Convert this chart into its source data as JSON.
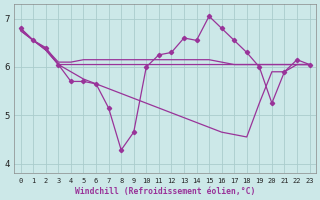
{
  "background_color": "#cce8e8",
  "grid_color": "#aacccc",
  "line_color": "#993399",
  "xlabel": "Windchill (Refroidissement éolien,°C)",
  "xlim": [
    -0.5,
    23.5
  ],
  "ylim": [
    3.8,
    7.3
  ],
  "yticks": [
    4,
    5,
    6,
    7
  ],
  "xticks": [
    0,
    1,
    2,
    3,
    4,
    5,
    6,
    7,
    8,
    9,
    10,
    11,
    12,
    13,
    14,
    15,
    16,
    17,
    18,
    19,
    20,
    21,
    22,
    23
  ],
  "series": [
    {
      "x": [
        0,
        1,
        2,
        3,
        4,
        5,
        6,
        7,
        8,
        9,
        10,
        11,
        12,
        13,
        14,
        15,
        16,
        17,
        18,
        19,
        20,
        21,
        22,
        23
      ],
      "y": [
        6.8,
        6.55,
        6.4,
        6.05,
        5.7,
        5.7,
        5.65,
        5.15,
        4.28,
        4.65,
        6.0,
        6.25,
        6.3,
        6.6,
        6.55,
        7.05,
        6.8,
        6.55,
        6.3,
        6.0,
        5.25,
        5.9,
        6.15,
        6.05
      ],
      "marker": true
    },
    {
      "x": [
        0,
        1,
        2,
        3,
        4,
        5,
        6,
        7,
        8,
        9,
        10,
        11,
        12,
        13,
        14,
        15,
        16,
        17,
        18,
        19,
        20,
        21,
        22,
        23
      ],
      "y": [
        6.8,
        6.55,
        6.35,
        6.05,
        6.05,
        6.05,
        6.05,
        6.05,
        6.05,
        6.05,
        6.05,
        6.05,
        6.05,
        6.05,
        6.05,
        6.05,
        6.05,
        6.05,
        6.05,
        6.05,
        6.05,
        6.05,
        6.05,
        6.05
      ],
      "marker": false
    },
    {
      "x": [
        0,
        1,
        2,
        3,
        4,
        5,
        6,
        7,
        8,
        9,
        10,
        11,
        12,
        13,
        14,
        15,
        16,
        17,
        18,
        19,
        20,
        21,
        22,
        23
      ],
      "y": [
        6.75,
        6.55,
        6.38,
        6.1,
        6.1,
        6.15,
        6.15,
        6.15,
        6.15,
        6.15,
        6.15,
        6.15,
        6.15,
        6.15,
        6.15,
        6.15,
        6.1,
        6.05,
        6.05,
        6.05,
        6.05,
        6.05,
        6.05,
        6.05
      ],
      "marker": false
    },
    {
      "x": [
        0,
        1,
        2,
        3,
        4,
        5,
        6,
        7,
        8,
        9,
        10,
        11,
        12,
        13,
        14,
        15,
        16,
        17,
        18,
        19,
        20,
        21,
        22,
        23
      ],
      "y": [
        6.75,
        6.55,
        6.35,
        6.05,
        5.9,
        5.75,
        5.65,
        5.55,
        5.45,
        5.35,
        5.25,
        5.15,
        5.05,
        4.95,
        4.85,
        4.75,
        4.65,
        4.6,
        4.55,
        5.25,
        5.9,
        5.9,
        6.05,
        6.05
      ],
      "marker": false
    }
  ]
}
